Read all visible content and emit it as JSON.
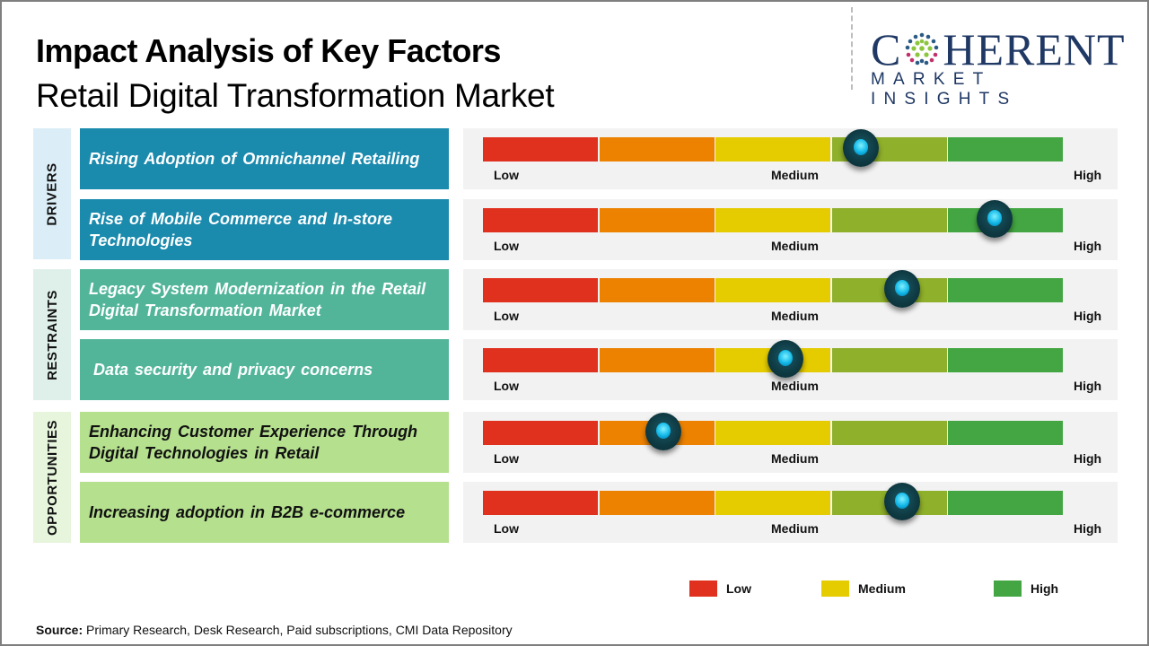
{
  "header": {
    "title": "Impact Analysis of Key Factors",
    "subtitle": "Retail Digital Transformation Market"
  },
  "logo": {
    "top_prefix": "C",
    "top_suffix": "HERENT",
    "bottom": "MARKET INSIGHTS",
    "color": "#1f3864"
  },
  "categories": [
    {
      "label": "DRIVERS",
      "bg": "#dbeef7"
    },
    {
      "label": "RESTRAINTS",
      "bg": "#dff0ea"
    },
    {
      "label": "OPPORTUNITIES",
      "bg": "#e6f5dc"
    }
  ],
  "scale": {
    "low": "Low",
    "medium": "Medium",
    "high": "High",
    "segment_colors": [
      "#e0301e",
      "#ec8200",
      "#e5cc00",
      "#8fb02a",
      "#43a642"
    ]
  },
  "legend": [
    {
      "label": "Low",
      "color": "#e0301e"
    },
    {
      "label": "Medium",
      "color": "#e5cc00"
    },
    {
      "label": "High",
      "color": "#43a642"
    }
  ],
  "source": {
    "prefix": "Source:",
    "text": " Primary Research, Desk Research, Paid subscriptions, CMI Data Repository"
  },
  "chart_data": {
    "type": "gauge",
    "title": "Impact Analysis of Key Factors",
    "subtitle": "Retail Digital Transformation Market",
    "scale_labels": [
      "Low",
      "Medium",
      "High"
    ],
    "range": [
      0,
      1
    ],
    "factors": [
      {
        "category": "Drivers",
        "label": "Rising Adoption of Omnichannel Retailing",
        "impact": 0.65
      },
      {
        "category": "Drivers",
        "label": "Rise of Mobile Commerce and In-store Technologies",
        "impact": 0.88
      },
      {
        "category": "Restraints",
        "label": "Legacy System Modernization  in the Retail Digital Transformation Market",
        "impact": 0.72
      },
      {
        "category": "Restraints",
        "label": "Data security and privacy concerns",
        "impact": 0.52
      },
      {
        "category": "Opportunities",
        "label": "Enhancing Customer Experience Through Digital Technologies in Retail",
        "impact": 0.31
      },
      {
        "category": "Opportunities",
        "label": "Increasing adoption in B2B e-commerce",
        "impact": 0.72
      }
    ],
    "factor_styles": [
      {
        "bg": "#1a8aad",
        "fg": "#ffffff"
      },
      {
        "bg": "#1a8aad",
        "fg": "#ffffff"
      },
      {
        "bg": "#52b59a",
        "fg": "#ffffff"
      },
      {
        "bg": "#52b59a",
        "fg": "#ffffff"
      },
      {
        "bg": "#b5e08e",
        "fg": "#111111"
      },
      {
        "bg": "#b5e08e",
        "fg": "#111111"
      }
    ],
    "legend": [
      "Low",
      "Medium",
      "High"
    ]
  }
}
